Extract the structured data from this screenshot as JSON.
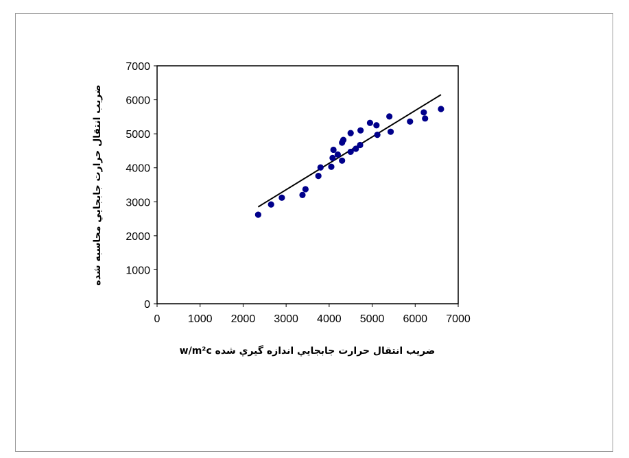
{
  "chart_data": {
    "type": "scatter",
    "xlabel": "ضريب انتقال حرارت جابجايي اندازه گيري شده w/m²c",
    "ylabel": "ضريب انتقال حرارت جابجايي محاسبه شده",
    "xlim": [
      0,
      7000
    ],
    "ylim": [
      0,
      7000
    ],
    "x_ticks": [
      "0",
      "1000",
      "2000",
      "3000",
      "4000",
      "5000",
      "6000",
      "7000"
    ],
    "y_ticks": [
      "0",
      "1000",
      "2000",
      "3000",
      "4000",
      "5000",
      "6000",
      "7000"
    ],
    "grid": false,
    "legend": "none",
    "series": [
      {
        "marker_color": "#00008B",
        "x": [
          2350,
          2650,
          2900,
          3380,
          3450,
          3750,
          3800,
          4050,
          4080,
          4100,
          4200,
          4300,
          4300,
          4330,
          4500,
          4500,
          4620,
          4720,
          4730,
          4950,
          5100,
          5120,
          5400,
          5430,
          5880,
          6200,
          6230,
          6600
        ],
        "y": [
          2620,
          2920,
          3120,
          3200,
          3370,
          3760,
          4010,
          4030,
          4290,
          4530,
          4390,
          4210,
          4740,
          4820,
          4470,
          5020,
          4560,
          4670,
          5100,
          5320,
          5250,
          4970,
          5510,
          5060,
          5360,
          5630,
          5450,
          5730
        ]
      }
    ],
    "trendline": {
      "x": [
        2350,
        6600
      ],
      "y": [
        2850,
        6150
      ],
      "color": "#000000"
    }
  }
}
